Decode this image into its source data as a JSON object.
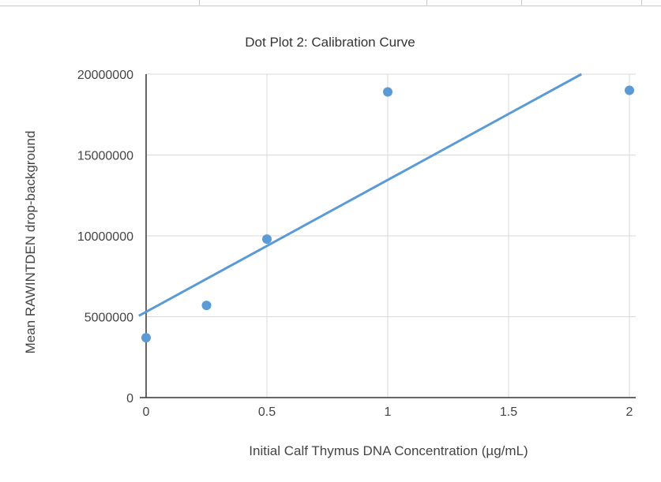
{
  "chart_data": {
    "type": "scatter",
    "title": "Dot Plot 2: Calibration Curve",
    "xlabel": "Initial Calf Thymus DNA Concentration (µg/mL)",
    "ylabel": "Mean RAWINTDEN drop-background",
    "xlim": [
      0,
      2
    ],
    "ylim": [
      0,
      20000000
    ],
    "x_ticks": [
      0,
      0.5,
      1,
      1.5,
      2
    ],
    "x_tick_labels": [
      "0",
      "0.5",
      "1",
      "1.5",
      "2"
    ],
    "y_ticks": [
      0,
      5000000,
      10000000,
      15000000,
      20000000
    ],
    "y_tick_labels": [
      "0",
      "5000000",
      "10000000",
      "15000000",
      "20000000"
    ],
    "grid": true,
    "legend": "none",
    "series": [
      {
        "x": [
          0,
          0.25,
          0.5,
          1,
          2
        ],
        "y": [
          3700000,
          5700000,
          9800000,
          18900000,
          19000000
        ],
        "color": "#5b9bd5",
        "trendline": {
          "type": "linear",
          "color": "#5b9bd5"
        }
      }
    ]
  }
}
